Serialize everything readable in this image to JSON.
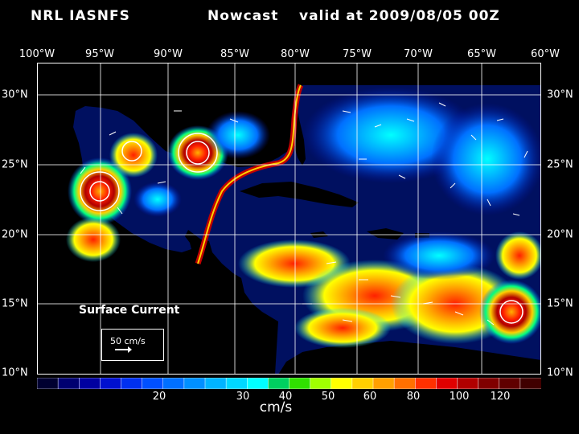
{
  "header": {
    "source": "NRL IASNFS",
    "product": "Nowcast",
    "valid": "valid at 2009/08/05 00Z"
  },
  "map": {
    "lon_labels": [
      "100°W",
      "95°W",
      "90°W",
      "85°W",
      "80°W",
      "75°W",
      "70°W",
      "65°W",
      "60°W"
    ],
    "lon_values": [
      -100,
      -95,
      -90,
      -85,
      -80,
      -75,
      -70,
      -65,
      -60
    ],
    "lat_labels": [
      "30°N",
      "25°N",
      "20°N",
      "15°N",
      "10°N"
    ],
    "lat_values": [
      30,
      25,
      20,
      15,
      10
    ],
    "lon_range": [
      -100,
      -60
    ],
    "lat_range": [
      10,
      31.5
    ],
    "grid": true
  },
  "overlay": {
    "label": "Surface Current",
    "reference_vector": "50 cm/s"
  },
  "colorbar": {
    "units": "cm/s",
    "tick_labels": [
      "20",
      "30",
      "40",
      "50",
      "60",
      "80",
      "100",
      "120"
    ],
    "colors": [
      "#000030",
      "#000070",
      "#0000a0",
      "#0010d0",
      "#0030f0",
      "#0050ff",
      "#0070ff",
      "#0090ff",
      "#00b4ff",
      "#00d8ff",
      "#00ffff",
      "#00d060",
      "#30e000",
      "#a0ff00",
      "#ffff00",
      "#ffd000",
      "#ffa000",
      "#ff7000",
      "#ff3000",
      "#e00000",
      "#b00000",
      "#800000",
      "#600000",
      "#400000"
    ]
  }
}
